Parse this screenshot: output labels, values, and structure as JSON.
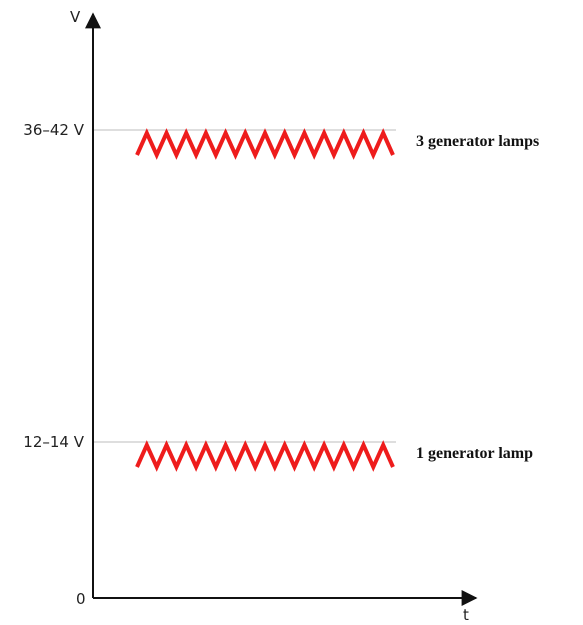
{
  "chart_data": {
    "type": "line",
    "title": "",
    "xlabel": "t",
    "ylabel": "V",
    "origin_label": "0",
    "grid": false,
    "legend": "none",
    "y_ticks": [
      {
        "label": "36–42 V",
        "value": 39
      },
      {
        "label": "12–14 V",
        "value": 13
      }
    ],
    "ylim": [
      0,
      45
    ],
    "series": [
      {
        "name": "3 generator lamps",
        "level": 39,
        "color": "#ee1c1c"
      },
      {
        "name": "1 generator lamp",
        "level": 13,
        "color": "#ee1c1c"
      }
    ]
  }
}
